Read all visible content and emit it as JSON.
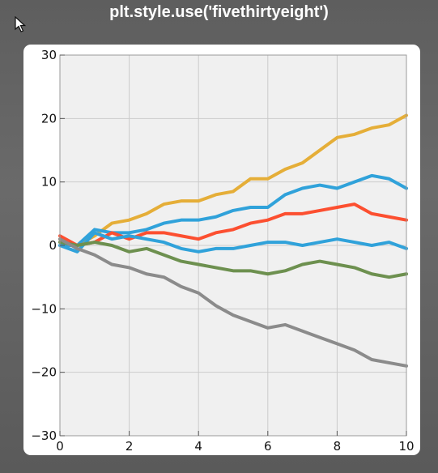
{
  "header": {
    "title": "plt.style.use('fivethirtyeight')"
  },
  "chart_data": {
    "type": "line",
    "title": "",
    "xlabel": "",
    "ylabel": "",
    "xlim": [
      0,
      10
    ],
    "ylim": [
      -30,
      30
    ],
    "xticks": [
      0,
      2,
      4,
      6,
      8,
      10
    ],
    "yticks": [
      -30,
      -20,
      -10,
      0,
      10,
      20,
      30
    ],
    "xtick_labels": [
      "0",
      "2",
      "4",
      "6",
      "8",
      "10"
    ],
    "ytick_labels": [
      "−30",
      "−20",
      "−10",
      "0",
      "10",
      "20",
      "30"
    ],
    "grid": true,
    "background": "#f0f0f0",
    "x": [
      0,
      0.5,
      1,
      1.5,
      2,
      2.5,
      3,
      3.5,
      4,
      4.5,
      5,
      5.5,
      6,
      6.5,
      7,
      7.5,
      8,
      8.5,
      9,
      9.5,
      10
    ],
    "series": [
      {
        "color": "#e5ae38",
        "values": [
          1,
          0,
          1.5,
          3.5,
          4,
          5,
          6.5,
          7,
          7,
          8,
          8.5,
          10.5,
          10.5,
          12,
          13,
          15,
          17,
          17.5,
          18.5,
          19,
          20.5
        ]
      },
      {
        "color": "#30a2da",
        "values": [
          0,
          0,
          2.5,
          2,
          2,
          2.5,
          3.5,
          4,
          4,
          4.5,
          5.5,
          6,
          6,
          8,
          9,
          9.5,
          9,
          10,
          11,
          10.5,
          9
        ]
      },
      {
        "color": "#fc4f30",
        "values": [
          1.5,
          0,
          0.5,
          2,
          1,
          2,
          2,
          1.5,
          1,
          2,
          2.5,
          3.5,
          4,
          5,
          5,
          5.5,
          6,
          6.5,
          5,
          4.5,
          4
        ]
      },
      {
        "color": "#30a2da",
        "values": [
          0,
          -1,
          2,
          1,
          1.5,
          1,
          0.5,
          -0.5,
          -1,
          -0.5,
          -0.5,
          0,
          0.5,
          0.5,
          0,
          0.5,
          1,
          0.5,
          0,
          0.5,
          -0.5
        ]
      },
      {
        "color": "#6d904f",
        "values": [
          0.5,
          0,
          0.5,
          0,
          -1,
          -0.5,
          -1.5,
          -2.5,
          -3,
          -3.5,
          -4,
          -4,
          -4.5,
          -4,
          -3,
          -2.5,
          -3,
          -3.5,
          -4.5,
          -5,
          -4.5
        ]
      },
      {
        "color": "#8b8b8b",
        "values": [
          1,
          -0.5,
          -1.5,
          -3,
          -3.5,
          -4.5,
          -5,
          -6.5,
          -7.5,
          -9.5,
          -11,
          -12,
          -13,
          -12.5,
          -13.5,
          -14.5,
          -15.5,
          -16.5,
          -18,
          -18.5,
          -19
        ]
      }
    ]
  }
}
